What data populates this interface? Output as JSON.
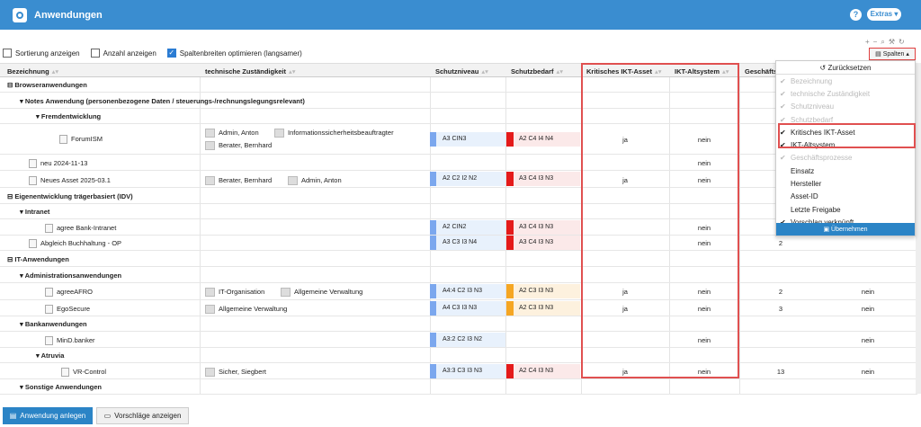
{
  "header": {
    "title": "Anwendungen",
    "help": "?",
    "extras": "Extras ▾"
  },
  "options": {
    "sort": "Sortierung anzeigen",
    "count": "Anzahl anzeigen",
    "optimize": "Spaltenbreiten optimieren (langsamer)"
  },
  "toolbar": {
    "plus": "+",
    "minus": "−",
    "search": "⌕",
    "wrench": "🔧",
    "refresh": "↻",
    "spalten": "Spalten ▴"
  },
  "columns": [
    "Bezeichnung",
    "technische Zuständigkeit",
    "Schutzniveau",
    "Schutzbedarf",
    "Kritisches IKT-Asset",
    "IKT-Altsystem",
    "Geschäfts"
  ],
  "groups": {
    "g1": "Browseranwendungen",
    "g2": "Eigenentwicklung trägerbasiert (IDV)",
    "g3": "IT-Anwendungen"
  },
  "sub": {
    "s1": "Notes Anwendung (personenbezogene Daten / steuerungs-/rechnungslegungsrelevant)",
    "s1a": "Fremdentwicklung",
    "s2": "Intranet",
    "s3": "Administrationsanwendungen",
    "s4": "Bankanwendungen",
    "s4a": "Atruvia",
    "s5": "Sonstige Anwendungen"
  },
  "rows": {
    "forumism": {
      "name": "ForumISM",
      "p1": "Admin, Anton",
      "p2": "Informationssicherheitsbeauftragter",
      "p3": "Berater, Bernhard",
      "sn": "A3 CIN3",
      "sb": "A2 C4 I4 N4",
      "krit": "ja",
      "alt": "nein"
    },
    "neu": {
      "name": "neu 2024-11-13",
      "alt": "nein"
    },
    "neues": {
      "name": "Neues Asset 2025-03.1",
      "p1": "Berater, Bernhard",
      "p2": "Admin, Anton",
      "sn": "A2 C2 I2 N2",
      "sb": "A3 C4 I3 N3",
      "krit": "ja",
      "alt": "nein"
    },
    "agree": {
      "name": "agree Bank-Intranet",
      "sn": "A2 CIN2",
      "sb": "A3 C4 I3 N3",
      "alt": "nein"
    },
    "abgleich": {
      "name": "Abgleich Buchhaltung - OP",
      "sn": "A3 C3 I3 N4",
      "sb": "A3 C4 I3 N3",
      "alt": "nein",
      "geo": "2"
    },
    "agreeafro": {
      "name": "agreeAFRO",
      "p1": "IT-Organisation",
      "p2": "Allgemeine Verwaltung",
      "sn": "A4:4 C2 I3 N3",
      "sb": "A2 C3 I3 N3",
      "krit": "ja",
      "alt": "nein",
      "geo": "2",
      "last": "nein"
    },
    "egosecure": {
      "name": "EgoSecure",
      "p1": "Allgemeine Verwaltung",
      "sn": "A4 C3 I3 N3",
      "sb": "A2 C3 I3 N3",
      "krit": "ja",
      "alt": "nein",
      "geo": "3",
      "last": "nein"
    },
    "mind": {
      "name": "MinD.banker",
      "sn": "A3:2 C2 I3 N2",
      "alt": "nein",
      "last": "nein"
    },
    "vr": {
      "name": "VR-Control",
      "p1": "Sicher, Siegbert",
      "sn": "A3:3 C3 I3 N3",
      "sb": "A2 C4 I3 N3",
      "krit": "ja",
      "alt": "nein",
      "geo": "13",
      "last": "nein"
    }
  },
  "dropdown": {
    "reset": "↺ Zurücksetzen",
    "items": [
      {
        "label": "Bezeichnung",
        "check": "✔"
      },
      {
        "label": "technische Zuständigkeit",
        "check": "✔"
      },
      {
        "label": "Schutzniveau",
        "check": "✔"
      },
      {
        "label": "Schutzbedarf",
        "check": "✔"
      },
      {
        "label": "Kritisches IKT-Asset",
        "check": "✔"
      },
      {
        "label": "IKT-Altsystem",
        "check": "✔"
      },
      {
        "label": "Geschäftsprozesse",
        "check": "✔"
      },
      {
        "label": "Einsatz",
        "check": ""
      },
      {
        "label": "Hersteller",
        "check": ""
      },
      {
        "label": "Asset-ID",
        "check": ""
      },
      {
        "label": "Letzte Freigabe",
        "check": ""
      },
      {
        "label": "Vorschlag verknüpft",
        "check": "✔"
      }
    ],
    "apply": "Übernehmen"
  },
  "bottom": {
    "create": "Anwendung anlegen",
    "suggest": "Vorschläge anzeigen"
  }
}
